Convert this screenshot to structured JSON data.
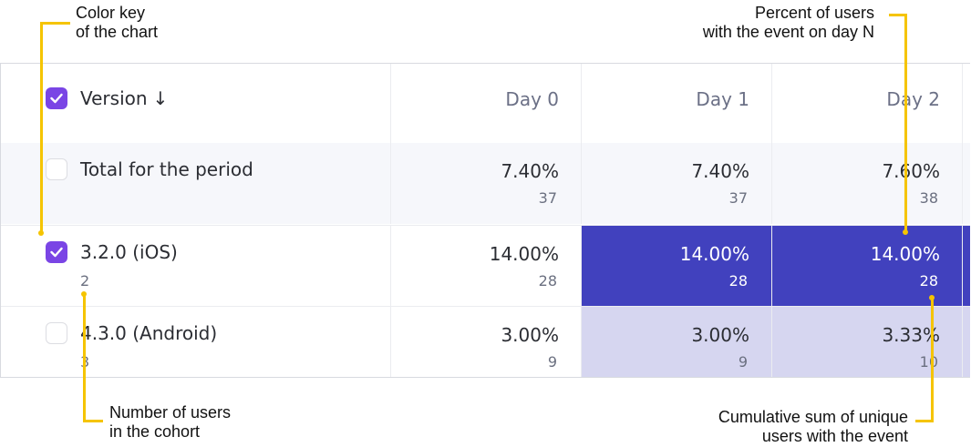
{
  "annotations": {
    "color_key": [
      "Color key",
      "of the chart"
    ],
    "percent": [
      "Percent of users",
      "with the event on day N"
    ],
    "cohort": [
      "Number of users",
      "in the cohort"
    ],
    "cumulative": [
      "Cumulative sum of unique",
      "users with the event"
    ]
  },
  "header": {
    "version_label": "Version",
    "sort_icon": "arrow-down",
    "days": [
      "Day 0",
      "Day 1",
      "Day 2"
    ],
    "checked": true
  },
  "rows": [
    {
      "label": "Total for the period",
      "cohort": "",
      "checked": false,
      "cells": [
        {
          "pct": "7.40%",
          "count": "37"
        },
        {
          "pct": "7.40%",
          "count": "37"
        },
        {
          "pct": "7.60%",
          "count": "38"
        }
      ]
    },
    {
      "label": "3.2.0 (iOS)",
      "cohort": "2",
      "checked": true,
      "cells": [
        {
          "pct": "14.00%",
          "count": "28"
        },
        {
          "pct": "14.00%",
          "count": "28"
        },
        {
          "pct": "14.00%",
          "count": "28"
        }
      ]
    },
    {
      "label": "4.3.0 (Android)",
      "cohort": "3",
      "checked": false,
      "cells": [
        {
          "pct": "3.00%",
          "count": "9"
        },
        {
          "pct": "3.00%",
          "count": "9"
        },
        {
          "pct": "3.33%",
          "count": "10"
        }
      ]
    }
  ],
  "colors": {
    "accent": "#7a45e5",
    "heat_dark": "#4141be",
    "heat_light": "#d6d6f0",
    "annotation_line": "#f5c400"
  }
}
